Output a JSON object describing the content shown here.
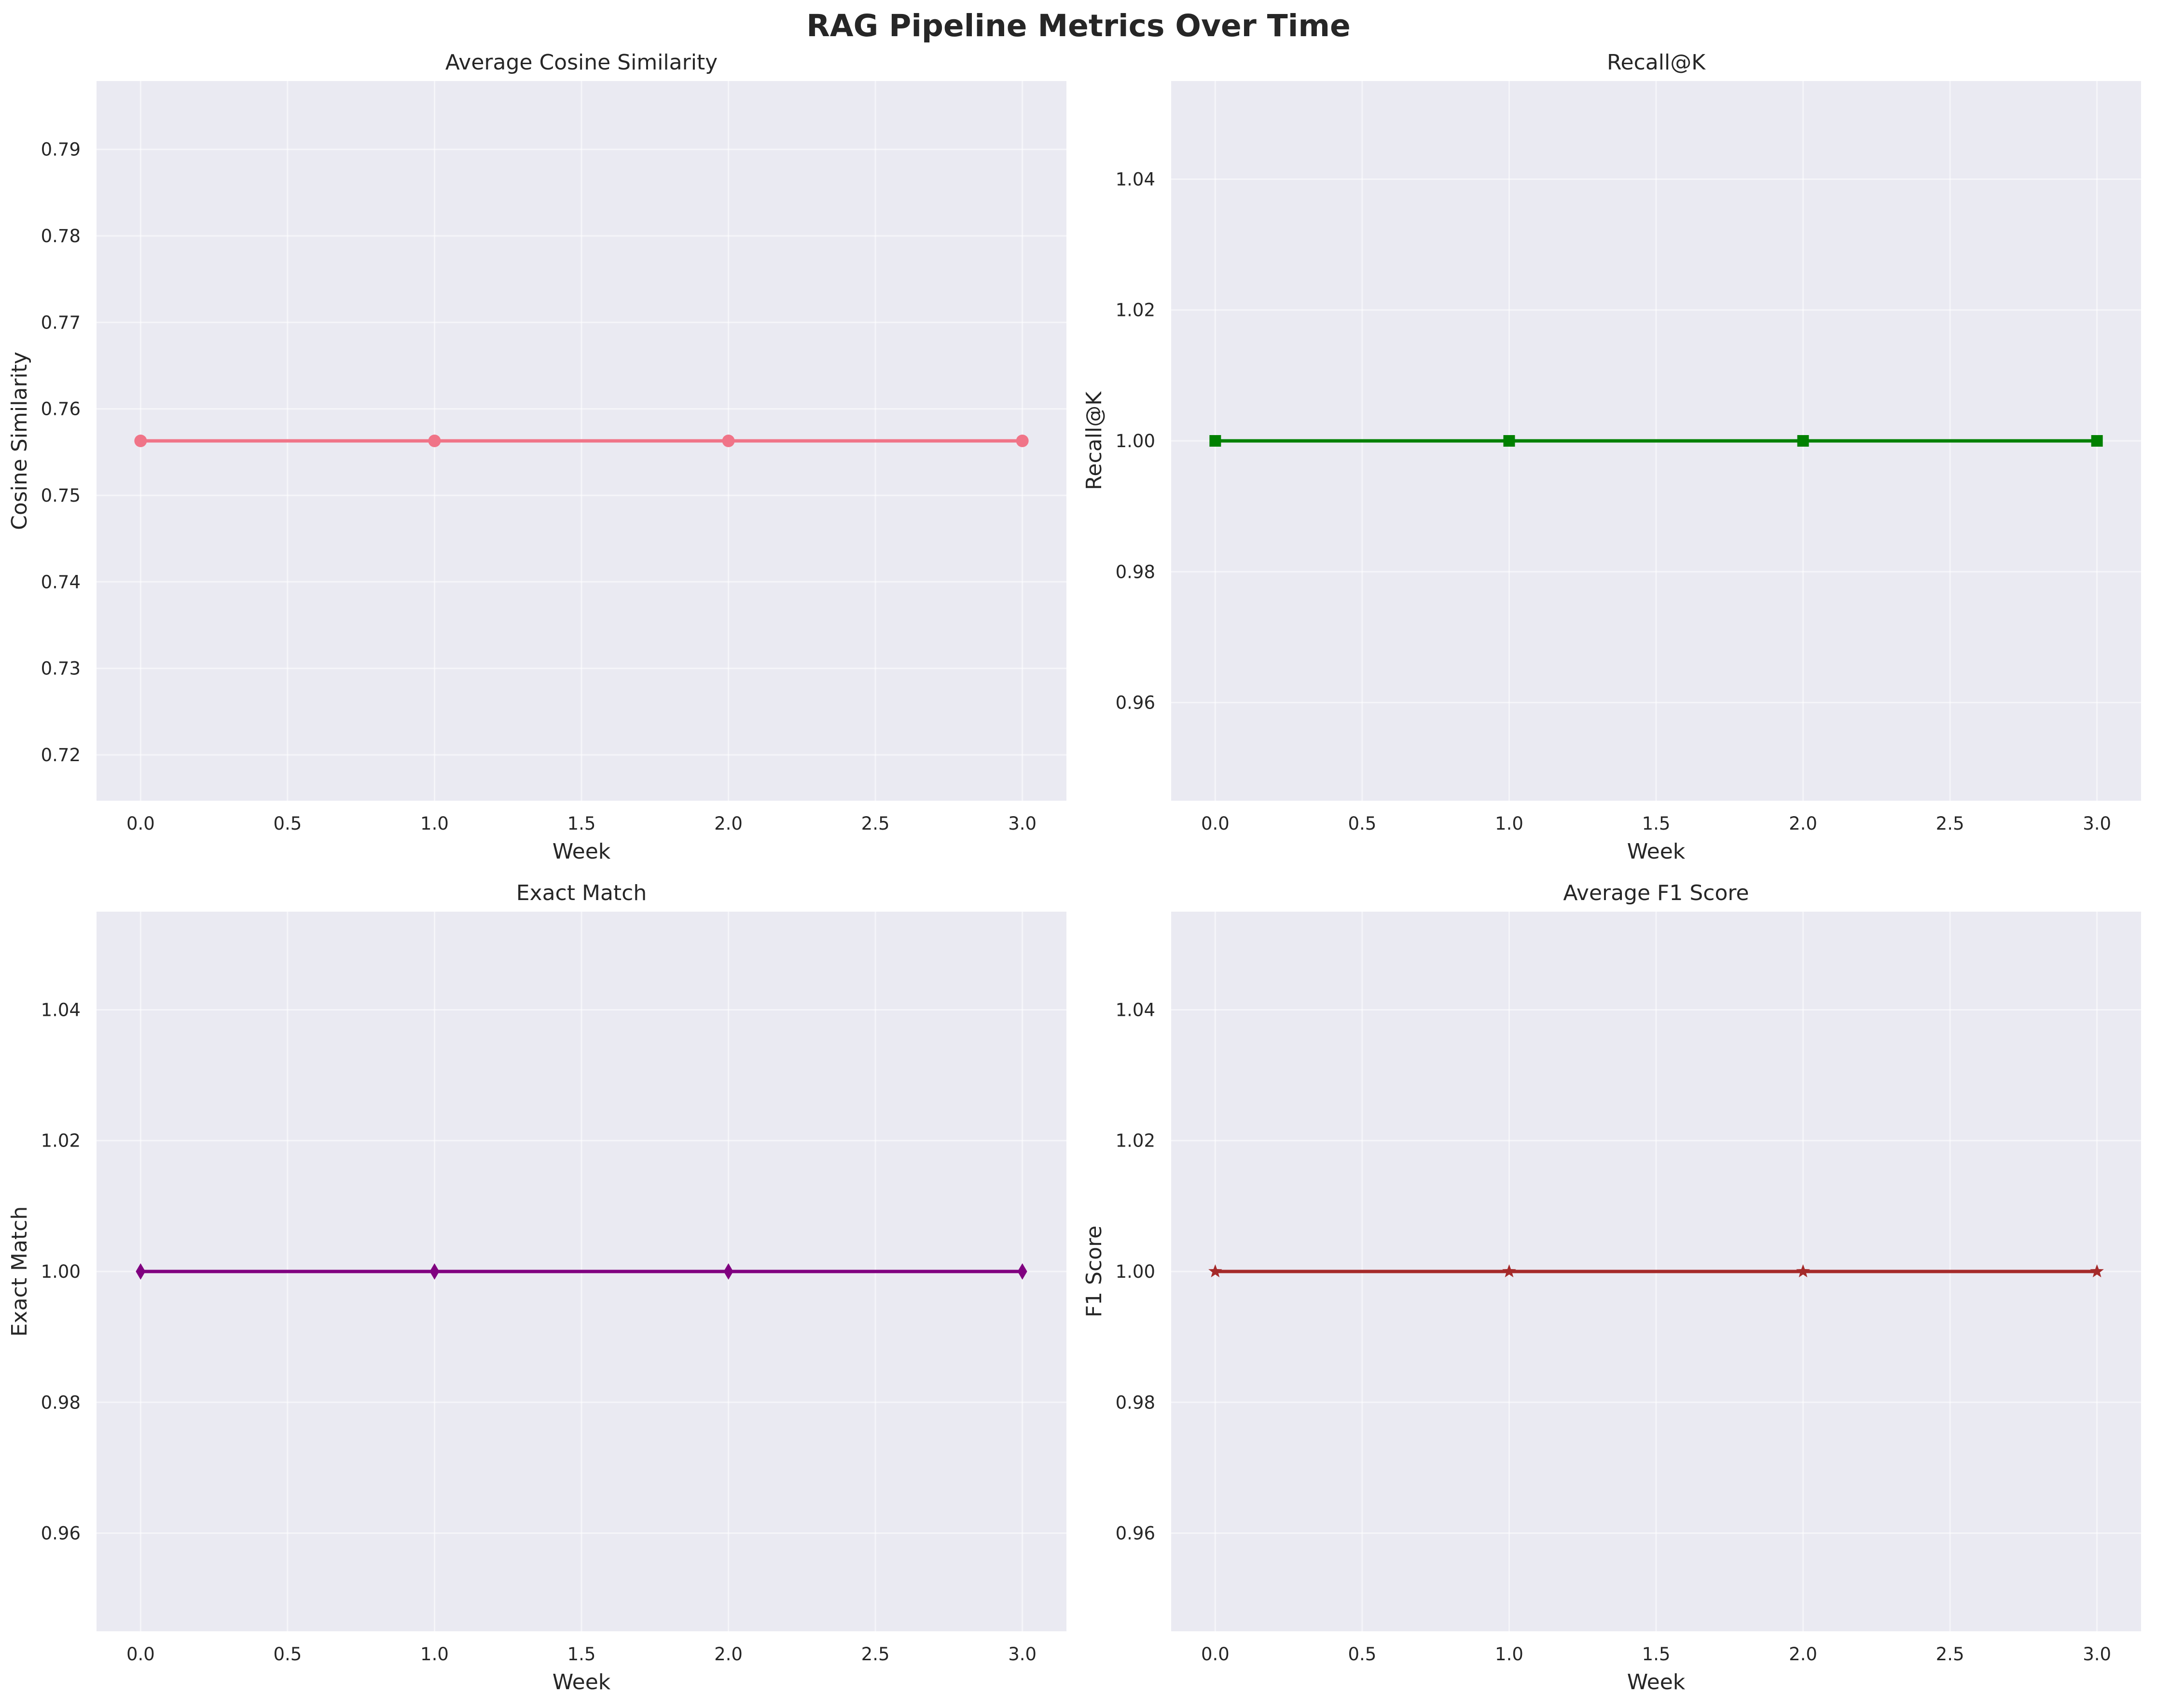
{
  "figure": {
    "title": "RAG Pipeline Metrics Over Time"
  },
  "chart_data": [
    {
      "type": "line",
      "title": "Average Cosine Similarity",
      "xlabel": "Week",
      "ylabel": "Cosine Similarity",
      "x": [
        0,
        1,
        2,
        3
      ],
      "series": [
        {
          "values": [
            0.7563,
            0.7563,
            0.7563,
            0.7563
          ],
          "color": "#f07488",
          "marker": "circle"
        }
      ],
      "xlim": [
        -0.15,
        3.15
      ],
      "ylim": [
        0.7147,
        0.7979
      ],
      "xticks": [
        0.0,
        0.5,
        1.0,
        1.5,
        2.0,
        2.5,
        3.0
      ],
      "xtick_labels": [
        "0.0",
        "0.5",
        "1.0",
        "1.5",
        "2.0",
        "2.5",
        "3.0"
      ],
      "yticks": [
        0.72,
        0.73,
        0.74,
        0.75,
        0.76,
        0.77,
        0.78,
        0.79
      ],
      "ytick_labels": [
        "0.72",
        "0.73",
        "0.74",
        "0.75",
        "0.76",
        "0.77",
        "0.78",
        "0.79"
      ],
      "grid": true
    },
    {
      "type": "line",
      "title": "Recall@K",
      "xlabel": "Week",
      "ylabel": "Recall@K",
      "x": [
        0,
        1,
        2,
        3
      ],
      "series": [
        {
          "values": [
            1.0,
            1.0,
            1.0,
            1.0
          ],
          "color": "#008000",
          "marker": "square"
        }
      ],
      "xlim": [
        -0.15,
        3.15
      ],
      "ylim": [
        0.945,
        1.055
      ],
      "xticks": [
        0.0,
        0.5,
        1.0,
        1.5,
        2.0,
        2.5,
        3.0
      ],
      "xtick_labels": [
        "0.0",
        "0.5",
        "1.0",
        "1.5",
        "2.0",
        "2.5",
        "3.0"
      ],
      "yticks": [
        0.96,
        0.98,
        1.0,
        1.02,
        1.04
      ],
      "ytick_labels": [
        "0.96",
        "0.98",
        "1.00",
        "1.02",
        "1.04"
      ],
      "grid": true
    },
    {
      "type": "line",
      "title": "Exact Match",
      "xlabel": "Week",
      "ylabel": "Exact Match",
      "x": [
        0,
        1,
        2,
        3
      ],
      "series": [
        {
          "values": [
            1.0,
            1.0,
            1.0,
            1.0
          ],
          "color": "#800080",
          "marker": "diamond"
        }
      ],
      "xlim": [
        -0.15,
        3.15
      ],
      "ylim": [
        0.945,
        1.055
      ],
      "xticks": [
        0.0,
        0.5,
        1.0,
        1.5,
        2.0,
        2.5,
        3.0
      ],
      "xtick_labels": [
        "0.0",
        "0.5",
        "1.0",
        "1.5",
        "2.0",
        "2.5",
        "3.0"
      ],
      "yticks": [
        0.96,
        0.98,
        1.0,
        1.02,
        1.04
      ],
      "ytick_labels": [
        "0.96",
        "0.98",
        "1.00",
        "1.02",
        "1.04"
      ],
      "grid": true
    },
    {
      "type": "line",
      "title": "Average F1 Score",
      "xlabel": "Week",
      "ylabel": "F1 Score",
      "x": [
        0,
        1,
        2,
        3
      ],
      "series": [
        {
          "values": [
            1.0,
            1.0,
            1.0,
            1.0
          ],
          "color": "#a52a2a",
          "marker": "star"
        }
      ],
      "xlim": [
        -0.15,
        3.15
      ],
      "ylim": [
        0.945,
        1.055
      ],
      "xticks": [
        0.0,
        0.5,
        1.0,
        1.5,
        2.0,
        2.5,
        3.0
      ],
      "xtick_labels": [
        "0.0",
        "0.5",
        "1.0",
        "1.5",
        "2.0",
        "2.5",
        "3.0"
      ],
      "yticks": [
        0.96,
        0.98,
        1.0,
        1.02,
        1.04
      ],
      "ytick_labels": [
        "0.96",
        "0.98",
        "1.00",
        "1.02",
        "1.04"
      ],
      "grid": true
    }
  ]
}
